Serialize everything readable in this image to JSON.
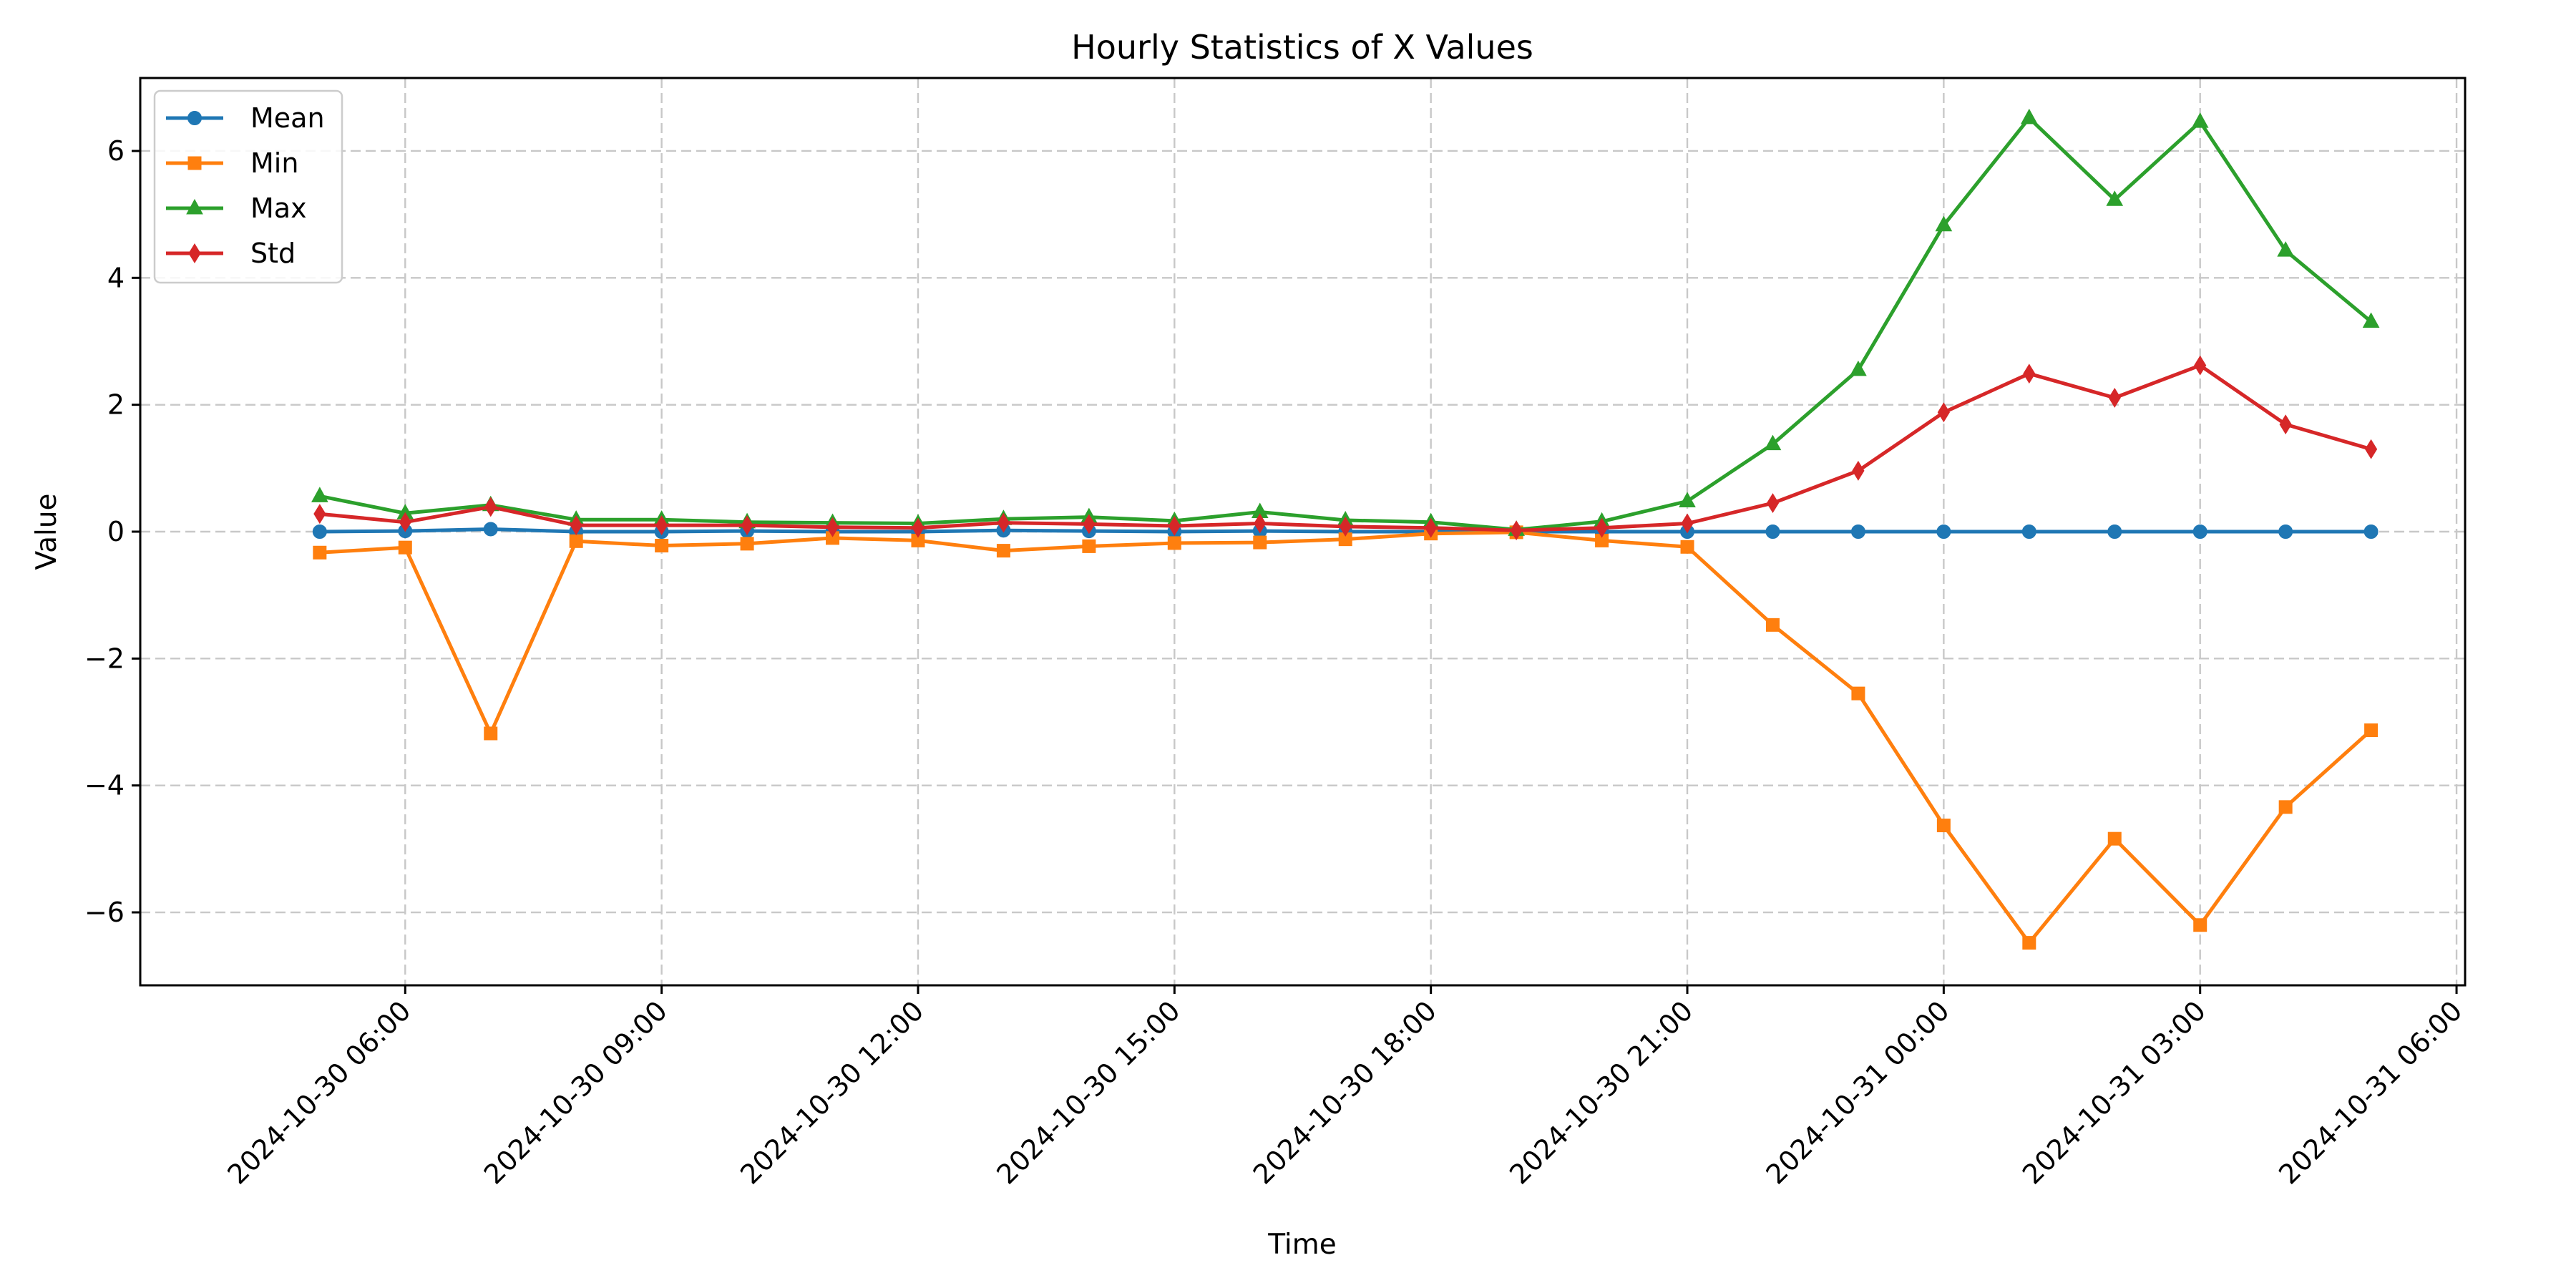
{
  "chart_data": {
    "type": "line",
    "title": "Hourly Statistics of X Values",
    "xlabel": "Time",
    "ylabel": "Value",
    "xlim": [
      "2024-10-30 02:54",
      "2024-10-31 06:06"
    ],
    "ylim": [
      -7.15,
      7.15
    ],
    "grid": true,
    "legend_position": "top-left",
    "x_ticks": [
      "2024-10-30 06:00",
      "2024-10-30 09:00",
      "2024-10-30 12:00",
      "2024-10-30 15:00",
      "2024-10-30 18:00",
      "2024-10-30 21:00",
      "2024-10-31 00:00",
      "2024-10-31 03:00",
      "2024-10-31 06:00"
    ],
    "y_ticks": [
      6,
      4,
      2,
      0,
      -2,
      -4,
      -6
    ],
    "y_tick_labels": [
      "6",
      "4",
      "2",
      "0",
      "−2",
      "−4",
      "−6"
    ],
    "x": [
      "2024-10-30 05:00",
      "2024-10-30 06:00",
      "2024-10-30 07:00",
      "2024-10-30 08:00",
      "2024-10-30 09:00",
      "2024-10-30 10:00",
      "2024-10-30 11:00",
      "2024-10-30 12:00",
      "2024-10-30 13:00",
      "2024-10-30 14:00",
      "2024-10-30 15:00",
      "2024-10-30 16:00",
      "2024-10-30 17:00",
      "2024-10-30 18:00",
      "2024-10-30 19:00",
      "2024-10-30 20:00",
      "2024-10-30 21:00",
      "2024-10-30 22:00",
      "2024-10-30 23:00",
      "2024-10-31 00:00",
      "2024-10-31 01:00",
      "2024-10-31 02:00",
      "2024-10-31 03:00",
      "2024-10-31 04:00",
      "2024-10-31 05:00"
    ],
    "series": [
      {
        "name": "Mean",
        "color": "#1f77b4",
        "marker": "circle",
        "values": [
          0.0,
          0.01,
          0.04,
          0.0,
          0.0,
          0.01,
          0.0,
          0.0,
          0.02,
          0.01,
          0.0,
          0.01,
          0.0,
          0.0,
          0.0,
          0.0,
          0.0,
          0.0,
          0.0,
          0.0,
          0.0,
          0.0,
          0.0,
          0.0,
          0.0
        ]
      },
      {
        "name": "Min",
        "color": "#ff7f0e",
        "marker": "square",
        "values": [
          -0.33,
          -0.25,
          -3.18,
          -0.15,
          -0.22,
          -0.19,
          -0.1,
          -0.14,
          -0.3,
          -0.23,
          -0.18,
          -0.17,
          -0.12,
          -0.03,
          -0.01,
          -0.14,
          -0.24,
          -1.47,
          -2.55,
          -4.63,
          -6.48,
          -4.84,
          -6.2,
          -4.34,
          -3.13
        ]
      },
      {
        "name": "Max",
        "color": "#2ca02c",
        "marker": "triangle",
        "values": [
          0.56,
          0.29,
          0.42,
          0.19,
          0.19,
          0.15,
          0.14,
          0.13,
          0.2,
          0.23,
          0.17,
          0.31,
          0.18,
          0.15,
          0.03,
          0.16,
          0.48,
          1.38,
          2.55,
          4.83,
          6.52,
          5.23,
          6.46,
          4.43,
          3.31
        ]
      },
      {
        "name": "Std",
        "color": "#d62728",
        "marker": "diamond",
        "values": [
          0.28,
          0.15,
          0.39,
          0.1,
          0.1,
          0.1,
          0.07,
          0.06,
          0.14,
          0.12,
          0.09,
          0.13,
          0.08,
          0.06,
          0.02,
          0.06,
          0.13,
          0.45,
          0.96,
          1.88,
          2.49,
          2.11,
          2.62,
          1.69,
          1.3
        ]
      }
    ]
  }
}
